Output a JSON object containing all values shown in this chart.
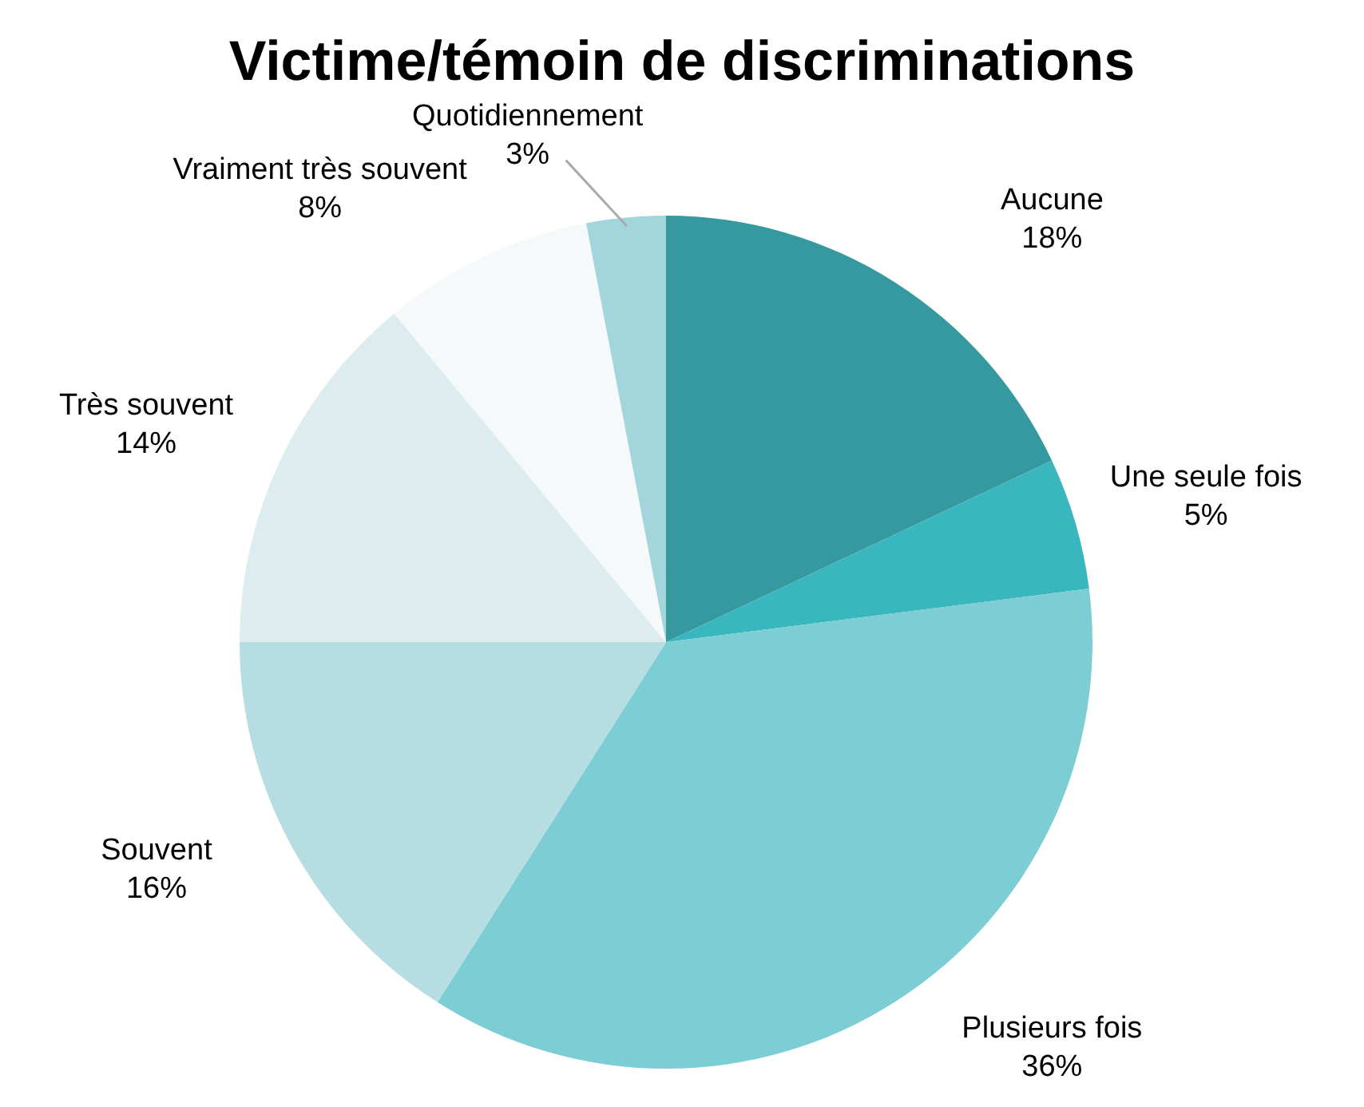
{
  "chart_data": {
    "type": "pie",
    "title": "Victime/témoin de discriminations",
    "categories": [
      "Aucune",
      "Une seule fois",
      "Plusieurs fois",
      "Souvent",
      "Très souvent",
      "Vraiment très souvent",
      "Quotidiennement"
    ],
    "values": [
      18,
      5,
      36,
      16,
      14,
      8,
      3
    ],
    "colors": [
      "#35999f",
      "#3ab6be",
      "#7ccdd4",
      "#b6dde2",
      "#dcecef",
      "#f6f9f9",
      "#a2d6dc"
    ],
    "value_labels": [
      "18%",
      "5%",
      "36%",
      "16%",
      "14%",
      "8%",
      "3%"
    ]
  }
}
